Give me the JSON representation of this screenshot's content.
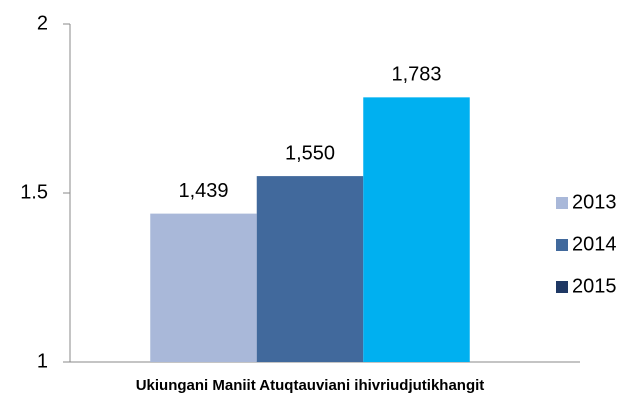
{
  "chart_data": {
    "type": "bar",
    "categories": [
      "Ukiungani Maniit Atuqtauviani ihivriudjutikhangit"
    ],
    "series": [
      {
        "name": "2013",
        "color": "#a9b8d9",
        "legend_color": "#a9b8d9",
        "values": [
          1.439
        ],
        "value_labels": [
          "1,439"
        ]
      },
      {
        "name": "2014",
        "color": "#41699c",
        "legend_color": "#41699c",
        "values": [
          1.55
        ],
        "value_labels": [
          "1,550"
        ]
      },
      {
        "name": "2015",
        "color": "#00b0f0",
        "legend_color": "#1f3864",
        "values": [
          1.783
        ],
        "value_labels": [
          "1,783"
        ]
      }
    ],
    "ylim": [
      1,
      2
    ],
    "yticks": [
      1,
      1.5,
      2
    ],
    "grid": false,
    "legend": "right"
  }
}
